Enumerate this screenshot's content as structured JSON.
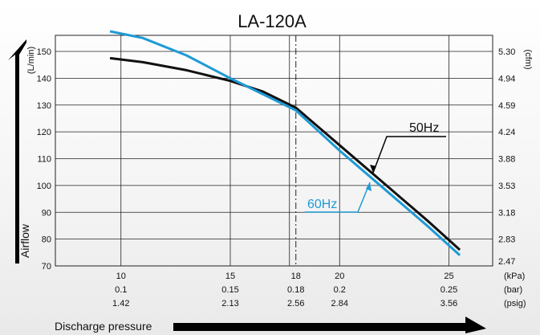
{
  "chart_data": {
    "type": "line",
    "title": "LA-120A",
    "xlabel": "Discharge pressure",
    "ylabel": "Airflow",
    "ylabel_left_unit": "(L/min)",
    "ylabel_right_unit": "(cfm)",
    "xlim": [
      7,
      27
    ],
    "ylim": [
      70,
      156
    ],
    "grid": true,
    "x_ticks": [
      {
        "kpa": "10",
        "bar": "0.1",
        "psig": "1.42",
        "value": 10
      },
      {
        "kpa": "15",
        "bar": "0.15",
        "psig": "2.13",
        "value": 15
      },
      {
        "kpa": "18",
        "bar": "0.18",
        "psig": "2.56",
        "value": 18
      },
      {
        "kpa": "20",
        "bar": "0.2",
        "psig": "2.84",
        "value": 20
      },
      {
        "kpa": "25",
        "bar": "0.25",
        "psig": "3.56",
        "value": 25
      }
    ],
    "x_unit_labels": [
      "(kPa)",
      "(bar)",
      "(psig)"
    ],
    "y_ticks_left": [
      {
        "label": "150",
        "value": 150
      },
      {
        "label": "140",
        "value": 140
      },
      {
        "label": "130",
        "value": 130
      },
      {
        "label": "120",
        "value": 120
      },
      {
        "label": "110",
        "value": 110
      },
      {
        "label": "100",
        "value": 100
      },
      {
        "label": "90",
        "value": 90
      },
      {
        "label": "80",
        "value": 80
      },
      {
        "label": "70",
        "value": 70
      }
    ],
    "y_ticks_right": [
      {
        "label": "5.30",
        "value": 150
      },
      {
        "label": "4.94",
        "value": 140
      },
      {
        "label": "4.59",
        "value": 130
      },
      {
        "label": "4.24",
        "value": 120
      },
      {
        "label": "3.88",
        "value": 110
      },
      {
        "label": "3.53",
        "value": 100
      },
      {
        "label": "3.18",
        "value": 90
      },
      {
        "label": "2.83",
        "value": 80
      },
      {
        "label": "2.47",
        "value": 70
      }
    ],
    "rated_pressure": 18,
    "series": [
      {
        "name": "50Hz",
        "color": "#111111",
        "x": [
          9.5,
          11,
          13,
          15,
          16.5,
          18,
          20,
          22,
          24,
          25.5
        ],
        "y": [
          147.5,
          146,
          143,
          139,
          135,
          129,
          115,
          101,
          87,
          76
        ]
      },
      {
        "name": "60Hz",
        "color": "#1e9ad6",
        "x": [
          9.5,
          11,
          13,
          15,
          16.5,
          18,
          20,
          22,
          24,
          25.5
        ],
        "y": [
          157.5,
          155,
          148.5,
          140,
          134,
          128,
          113,
          99,
          85,
          74
        ]
      }
    ]
  }
}
